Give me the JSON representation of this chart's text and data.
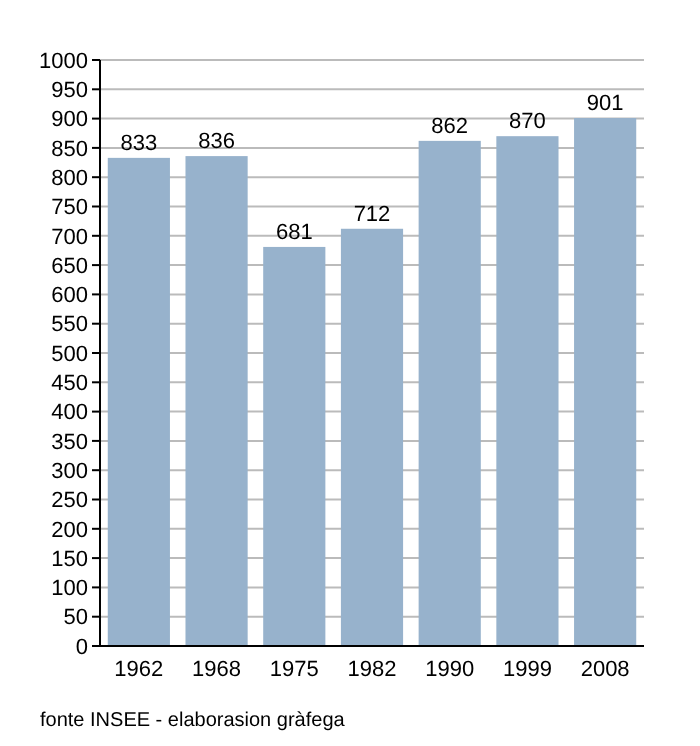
{
  "chart_data": {
    "type": "bar",
    "categories": [
      "1962",
      "1968",
      "1975",
      "1982",
      "1990",
      "1999",
      "2008"
    ],
    "values": [
      833,
      836,
      681,
      712,
      862,
      870,
      901
    ],
    "color": "#97b2cc",
    "data_labels": true,
    "ylim": [
      0,
      1000
    ],
    "yticks": [
      0,
      50,
      100,
      150,
      200,
      250,
      300,
      350,
      400,
      450,
      500,
      550,
      600,
      650,
      700,
      750,
      800,
      850,
      900,
      950,
      1000
    ],
    "grid": "y",
    "annotations": [
      "fonte INSEE - elaborasion gràfega"
    ]
  }
}
